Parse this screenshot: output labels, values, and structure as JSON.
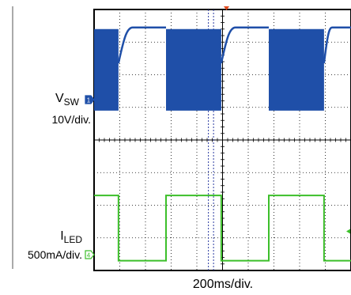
{
  "chart_data": {
    "type": "line",
    "title": "",
    "xlabel": "200ms/div.",
    "x_range_s": [
      0,
      2.0
    ],
    "x_divisions": 10,
    "y_divisions": 8,
    "grid": true,
    "channels": [
      {
        "name": "V_SW",
        "label_main": "V",
        "label_sub": "SW",
        "scale": "10V/div.",
        "color": "#1f4fa8",
        "marker_symbol": "1",
        "style": "switching-burst",
        "segments": [
          {
            "start_div": 0.0,
            "end_div": 0.95,
            "state": "switching"
          },
          {
            "start_div": 0.95,
            "end_div": 2.8,
            "state": "high"
          },
          {
            "start_div": 2.8,
            "end_div": 4.95,
            "state": "switching"
          },
          {
            "start_div": 4.95,
            "end_div": 6.8,
            "state": "high"
          },
          {
            "start_div": 6.8,
            "end_div": 8.95,
            "state": "switching"
          },
          {
            "start_div": 8.95,
            "end_div": 10.0,
            "state": "high"
          }
        ]
      },
      {
        "name": "I_LED",
        "label_main": "I",
        "label_sub": "LED",
        "scale": "500mA/div.",
        "color": "#3cbf2a",
        "marker_symbol": "4",
        "style": "square",
        "segments": [
          {
            "start_div": 0.0,
            "end_div": 0.95,
            "state": "high"
          },
          {
            "start_div": 0.95,
            "end_div": 2.8,
            "state": "low"
          },
          {
            "start_div": 2.8,
            "end_div": 4.95,
            "state": "high"
          },
          {
            "start_div": 4.95,
            "end_div": 6.8,
            "state": "low"
          },
          {
            "start_div": 6.8,
            "end_div": 8.95,
            "state": "high"
          },
          {
            "start_div": 8.95,
            "end_div": 10.0,
            "state": "low"
          }
        ]
      }
    ],
    "cursors_div": [
      4.45,
      4.65
    ]
  }
}
